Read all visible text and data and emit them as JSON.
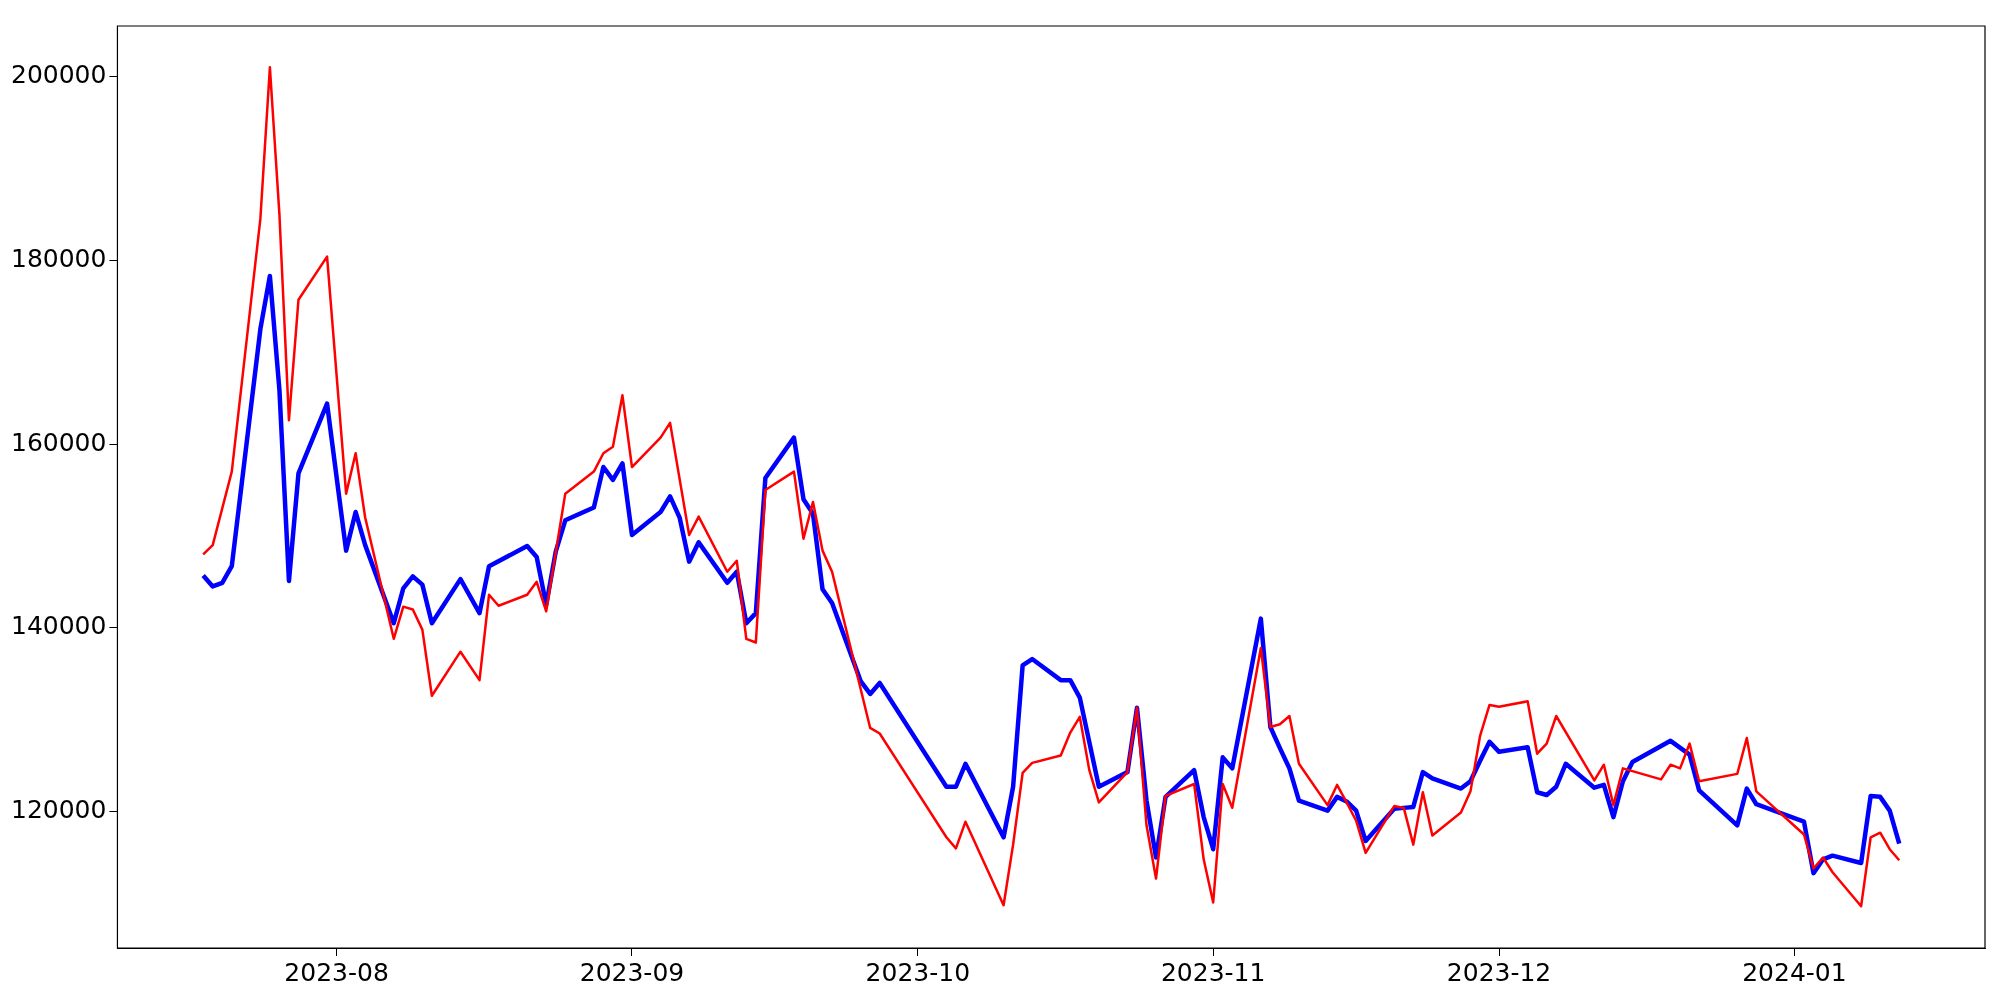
{
  "chart_data": {
    "type": "line",
    "xlim": [
      "2023-07-09",
      "2024-01-21"
    ],
    "xticks": [
      {
        "value": "2023-08-01",
        "label": "2023-08"
      },
      {
        "value": "2023-09-01",
        "label": "2023-09"
      },
      {
        "value": "2023-10-01",
        "label": "2023-10"
      },
      {
        "value": "2023-11-01",
        "label": "2023-11"
      },
      {
        "value": "2023-12-01",
        "label": "2023-12"
      },
      {
        "value": "2024-01-01",
        "label": "2024-01"
      }
    ],
    "ylim": [
      105150,
      205500
    ],
    "yticks": [
      120000,
      140000,
      160000,
      180000,
      200000
    ],
    "series": [
      {
        "color": "#ff0000",
        "x": [
          "2023-07-18",
          "2023-07-19",
          "2023-07-21",
          "2023-07-24",
          "2023-07-25",
          "2023-07-26",
          "2023-07-27",
          "2023-07-28",
          "2023-07-31",
          "2023-08-02",
          "2023-08-03",
          "2023-08-04",
          "2023-08-07",
          "2023-08-08",
          "2023-08-09",
          "2023-08-10",
          "2023-08-11",
          "2023-08-14",
          "2023-08-16",
          "2023-08-17",
          "2023-08-18",
          "2023-08-21",
          "2023-08-22",
          "2023-08-23",
          "2023-08-25",
          "2023-08-28",
          "2023-08-29",
          "2023-08-30",
          "2023-08-31",
          "2023-09-01",
          "2023-09-04",
          "2023-09-05",
          "2023-09-07",
          "2023-09-08",
          "2023-09-11",
          "2023-09-12",
          "2023-09-13",
          "2023-09-14",
          "2023-09-15",
          "2023-09-18",
          "2023-09-19",
          "2023-09-20",
          "2023-09-21",
          "2023-09-22",
          "2023-09-26",
          "2023-09-27",
          "2023-10-04",
          "2023-10-05",
          "2023-10-06",
          "2023-10-10",
          "2023-10-11",
          "2023-10-12",
          "2023-10-13",
          "2023-10-16",
          "2023-10-17",
          "2023-10-18",
          "2023-10-19",
          "2023-10-20",
          "2023-10-23",
          "2023-10-24",
          "2023-10-25",
          "2023-10-26",
          "2023-10-27",
          "2023-10-30",
          "2023-10-31",
          "2023-11-01",
          "2023-11-02",
          "2023-11-03",
          "2023-11-06",
          "2023-11-07",
          "2023-11-08",
          "2023-11-09",
          "2023-11-10",
          "2023-11-13",
          "2023-11-14",
          "2023-11-15",
          "2023-11-16",
          "2023-11-17",
          "2023-11-20",
          "2023-11-21",
          "2023-11-22",
          "2023-11-23",
          "2023-11-24",
          "2023-11-27",
          "2023-11-28",
          "2023-11-29",
          "2023-11-30",
          "2023-12-01",
          "2023-12-04",
          "2023-12-05",
          "2023-12-06",
          "2023-12-07",
          "2023-12-11",
          "2023-12-12",
          "2023-12-13",
          "2023-12-14",
          "2023-12-18",
          "2023-12-19",
          "2023-12-20",
          "2023-12-21",
          "2023-12-22",
          "2023-12-26",
          "2023-12-27",
          "2023-12-28",
          "2024-01-02",
          "2024-01-03",
          "2024-01-04",
          "2024-01-05",
          "2024-01-08",
          "2024-01-09",
          "2024-01-10",
          "2024-01-11",
          "2024-01-12"
        ],
        "values": [
          148000,
          149000,
          157000,
          184500,
          201000,
          185000,
          162600,
          175700,
          180400,
          154600,
          159000,
          152000,
          138800,
          142300,
          142000,
          139800,
          132600,
          137400,
          134300,
          143600,
          142400,
          143600,
          145000,
          141800,
          154600,
          157000,
          159000,
          159700,
          165300,
          157500,
          160700,
          162300,
          150100,
          152100,
          146100,
          147300,
          138800,
          138400,
          155000,
          157000,
          149700,
          153700,
          148400,
          146100,
          129100,
          128500,
          117200,
          116000,
          118900,
          109800,
          116400,
          124200,
          125300,
          126100,
          128600,
          130300,
          124500,
          121000,
          124300,
          131300,
          118500,
          112700,
          121700,
          123000,
          114800,
          110100,
          123000,
          120400,
          137800,
          129200,
          129500,
          130400,
          125200,
          120700,
          122900,
          121000,
          119000,
          115500,
          120600,
          120400,
          116400,
          122100,
          117400,
          119900,
          122200,
          128200,
          131600,
          131400,
          132000,
          126300,
          127400,
          130400,
          123400,
          125100,
          120700,
          124700,
          123500,
          125100,
          124700,
          127400,
          123300,
          124100,
          128000,
          122200,
          117500,
          113800,
          115000,
          113400,
          109700,
          117200,
          117700,
          115900,
          114700
        ]
      },
      {
        "color": "#0000ff",
        "x": [
          "2023-07-18",
          "2023-07-19",
          "2023-07-20",
          "2023-07-21",
          "2023-07-24",
          "2023-07-25",
          "2023-07-26",
          "2023-07-27",
          "2023-07-28",
          "2023-07-31",
          "2023-08-02",
          "2023-08-03",
          "2023-08-04",
          "2023-08-07",
          "2023-08-08",
          "2023-08-09",
          "2023-08-10",
          "2023-08-11",
          "2023-08-14",
          "2023-08-16",
          "2023-08-17",
          "2023-08-21",
          "2023-08-22",
          "2023-08-23",
          "2023-08-24",
          "2023-08-25",
          "2023-08-28",
          "2023-08-29",
          "2023-08-30",
          "2023-08-31",
          "2023-09-01",
          "2023-09-04",
          "2023-09-05",
          "2023-09-06",
          "2023-09-07",
          "2023-09-08",
          "2023-09-11",
          "2023-09-12",
          "2023-09-13",
          "2023-09-14",
          "2023-09-15",
          "2023-09-18",
          "2023-09-19",
          "2023-09-20",
          "2023-09-21",
          "2023-09-22",
          "2023-09-25",
          "2023-09-26",
          "2023-09-27",
          "2023-10-04",
          "2023-10-05",
          "2023-10-06",
          "2023-10-10",
          "2023-10-11",
          "2023-10-12",
          "2023-10-13",
          "2023-10-16",
          "2023-10-17",
          "2023-10-18",
          "2023-10-20",
          "2023-10-23",
          "2023-10-24",
          "2023-10-25",
          "2023-10-26",
          "2023-10-27",
          "2023-10-30",
          "2023-10-31",
          "2023-11-01",
          "2023-11-02",
          "2023-11-03",
          "2023-11-06",
          "2023-11-07",
          "2023-11-08",
          "2023-11-09",
          "2023-11-10",
          "2023-11-13",
          "2023-11-14",
          "2023-11-15",
          "2023-11-16",
          "2023-11-17",
          "2023-11-20",
          "2023-11-21",
          "2023-11-22",
          "2023-11-23",
          "2023-11-24",
          "2023-11-27",
          "2023-11-28",
          "2023-11-29",
          "2023-11-30",
          "2023-12-01",
          "2023-12-04",
          "2023-12-05",
          "2023-12-06",
          "2023-12-07",
          "2023-12-08",
          "2023-12-11",
          "2023-12-12",
          "2023-12-13",
          "2023-12-14",
          "2023-12-15",
          "2023-12-19",
          "2023-12-21",
          "2023-12-22",
          "2023-12-26",
          "2023-12-27",
          "2023-12-28",
          "2024-01-02",
          "2024-01-03",
          "2024-01-04",
          "2024-01-05",
          "2024-01-08",
          "2024-01-09",
          "2024-01-10",
          "2024-01-11",
          "2024-01-12"
        ],
        "values": [
          145700,
          144500,
          144900,
          146700,
          172500,
          178300,
          165900,
          145100,
          156800,
          164400,
          148400,
          152600,
          149000,
          140500,
          144300,
          145600,
          144700,
          140500,
          145300,
          141600,
          146700,
          148900,
          147700,
          142500,
          148300,
          151700,
          153100,
          157500,
          156100,
          157900,
          150100,
          152600,
          154300,
          152000,
          147200,
          149300,
          144900,
          146100,
          140500,
          141600,
          156300,
          160700,
          154000,
          152400,
          144200,
          142700,
          134200,
          132800,
          134000,
          122700,
          122700,
          125200,
          117200,
          122700,
          135900,
          136600,
          134300,
          134300,
          132400,
          122700,
          124300,
          131300,
          121200,
          115000,
          121600,
          124500,
          119400,
          115900,
          125900,
          124700,
          141000,
          129200,
          126900,
          124700,
          121200,
          120100,
          121600,
          121100,
          120100,
          116800,
          120300,
          120400,
          120500,
          124300,
          123600,
          122500,
          123300,
          125500,
          127600,
          126500,
          127000,
          122100,
          121800,
          122700,
          125200,
          122600,
          122900,
          119400,
          123300,
          125400,
          127700,
          126200,
          122300,
          118500,
          122500,
          120800,
          118900,
          113300,
          114800,
          115200,
          114400,
          121700,
          121600,
          120100,
          116500
        ]
      }
    ]
  }
}
